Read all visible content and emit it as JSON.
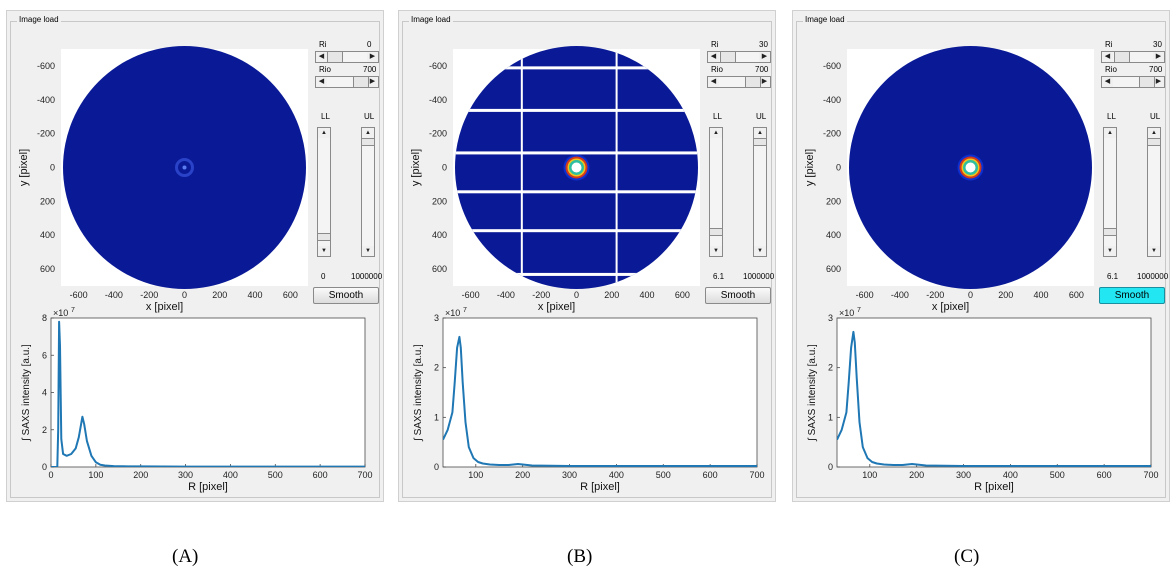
{
  "panels": [
    {
      "id": "A",
      "group_title": "Image load",
      "image_axes": {
        "x_label": "x [pixel]",
        "y_label": "y [pixel]",
        "ticks": [
          "-600",
          "-400",
          "-200",
          "0",
          "200",
          "400",
          "600"
        ],
        "rings": "faint"
      },
      "ri": {
        "label": "Ri",
        "value": "0",
        "position": 0.0
      },
      "rio": {
        "label": "Rio",
        "value": "700",
        "position": 1.0
      },
      "ll": {
        "label": "LL",
        "value": "0",
        "position": 0.05
      },
      "ul": {
        "label": "UL",
        "value": "1000000",
        "position": 1.0
      },
      "smooth_label": "Smooth",
      "smooth_active": false,
      "profile": {
        "x_label": "R [pixel]",
        "y_label": "∫ SAXS intensity [a.u.]",
        "exponent": "×10",
        "exponent_power": "7",
        "y_ticks": [
          "0",
          "2",
          "4",
          "6",
          "8"
        ],
        "x_ticks": [
          "0",
          "100",
          "200",
          "300",
          "400",
          "500",
          "600",
          "700"
        ],
        "ylim": [
          0,
          8
        ],
        "xlim": [
          0,
          700
        ]
      },
      "caption": "(A)"
    },
    {
      "id": "B",
      "group_title": "Image load",
      "image_axes": {
        "x_label": "x [pixel]",
        "y_label": "y [pixel]",
        "ticks": [
          "-600",
          "-400",
          "-200",
          "0",
          "200",
          "400",
          "600"
        ],
        "rings": "strong"
      },
      "ri": {
        "label": "Ri",
        "value": "30",
        "position": 0.04
      },
      "rio": {
        "label": "Rio",
        "value": "700",
        "position": 1.0
      },
      "ll": {
        "label": "LL",
        "value": "6.1",
        "position": 0.1
      },
      "ul": {
        "label": "UL",
        "value": "1000000",
        "position": 1.0
      },
      "smooth_label": "Smooth",
      "smooth_active": false,
      "profile": {
        "x_label": "R [pixel]",
        "y_label": "∫ SAXS intensity [a.u.]",
        "exponent": "×10",
        "exponent_power": "7",
        "y_ticks": [
          "0",
          "1",
          "2",
          "3"
        ],
        "x_ticks": [
          "100",
          "200",
          "300",
          "400",
          "500",
          "600",
          "700"
        ],
        "ylim": [
          0,
          3
        ],
        "xlim": [
          30,
          700
        ]
      },
      "caption": "(B)"
    },
    {
      "id": "C",
      "group_title": "Image load",
      "image_axes": {
        "x_label": "x [pixel]",
        "y_label": "y [pixel]",
        "ticks": [
          "-600",
          "-400",
          "-200",
          "0",
          "200",
          "400",
          "600"
        ],
        "rings": "strong"
      },
      "ri": {
        "label": "Ri",
        "value": "30",
        "position": 0.04
      },
      "rio": {
        "label": "Rio",
        "value": "700",
        "position": 1.0
      },
      "ll": {
        "label": "LL",
        "value": "6.1",
        "position": 0.1
      },
      "ul": {
        "label": "UL",
        "value": "1000000",
        "position": 1.0
      },
      "smooth_label": "Smooth",
      "smooth_active": true,
      "profile": {
        "x_label": "R [pixel]",
        "y_label": "∫ SAXS intensity [a.u.]",
        "exponent": "×10",
        "exponent_power": "7",
        "y_ticks": [
          "0",
          "1",
          "2",
          "3"
        ],
        "x_ticks": [
          "100",
          "200",
          "300",
          "400",
          "500",
          "600",
          "700"
        ],
        "ylim": [
          0,
          3
        ],
        "xlim": [
          30,
          700
        ]
      },
      "caption": "(C)"
    }
  ],
  "chart_data": [
    {
      "type": "line",
      "panel": "A",
      "title": "",
      "xlabel": "R [pixel]",
      "ylabel": "∫ SAXS intensity [a.u.]",
      "xlim": [
        0,
        700
      ],
      "ylim": [
        0,
        8
      ],
      "y_multiplier": "×10^7",
      "series": [
        {
          "x": [
            0,
            5,
            10,
            14,
            16,
            18,
            20,
            23,
            27,
            35,
            45,
            55,
            62,
            67,
            70,
            74,
            80,
            90,
            100,
            110,
            120,
            140,
            160,
            200,
            300,
            400,
            500,
            600,
            700
          ],
          "y": [
            0,
            0,
            0,
            0,
            2.0,
            7.8,
            6.5,
            1.5,
            0.7,
            0.6,
            0.7,
            1.0,
            1.6,
            2.3,
            2.7,
            2.3,
            1.4,
            0.6,
            0.25,
            0.12,
            0.08,
            0.05,
            0.04,
            0.03,
            0.02,
            0.02,
            0.02,
            0.02,
            0.02
          ]
        }
      ]
    },
    {
      "type": "line",
      "panel": "B",
      "title": "",
      "xlabel": "R [pixel]",
      "ylabel": "∫ SAXS intensity [a.u.]",
      "xlim": [
        30,
        700
      ],
      "ylim": [
        0,
        3
      ],
      "y_multiplier": "×10^7",
      "series": [
        {
          "x": [
            30,
            40,
            50,
            55,
            60,
            65,
            68,
            72,
            78,
            85,
            95,
            105,
            115,
            130,
            150,
            170,
            190,
            200,
            220,
            300,
            400,
            500,
            600,
            700
          ],
          "y": [
            0.55,
            0.75,
            1.1,
            1.7,
            2.4,
            2.62,
            2.4,
            1.7,
            0.9,
            0.4,
            0.18,
            0.1,
            0.07,
            0.05,
            0.04,
            0.04,
            0.06,
            0.05,
            0.03,
            0.02,
            0.02,
            0.02,
            0.02,
            0.02
          ]
        }
      ]
    },
    {
      "type": "line",
      "panel": "C",
      "title": "",
      "xlabel": "R [pixel]",
      "ylabel": "∫ SAXS intensity [a.u.]",
      "xlim": [
        30,
        700
      ],
      "ylim": [
        0,
        3
      ],
      "y_multiplier": "×10^7",
      "series": [
        {
          "x": [
            30,
            40,
            50,
            55,
            60,
            65,
            68,
            72,
            78,
            85,
            95,
            105,
            115,
            130,
            150,
            170,
            190,
            200,
            220,
            300,
            400,
            500,
            600,
            700
          ],
          "y": [
            0.55,
            0.75,
            1.1,
            1.7,
            2.4,
            2.72,
            2.5,
            1.8,
            0.9,
            0.4,
            0.18,
            0.1,
            0.07,
            0.05,
            0.04,
            0.04,
            0.06,
            0.05,
            0.03,
            0.02,
            0.02,
            0.02,
            0.02,
            0.02
          ]
        }
      ]
    }
  ]
}
